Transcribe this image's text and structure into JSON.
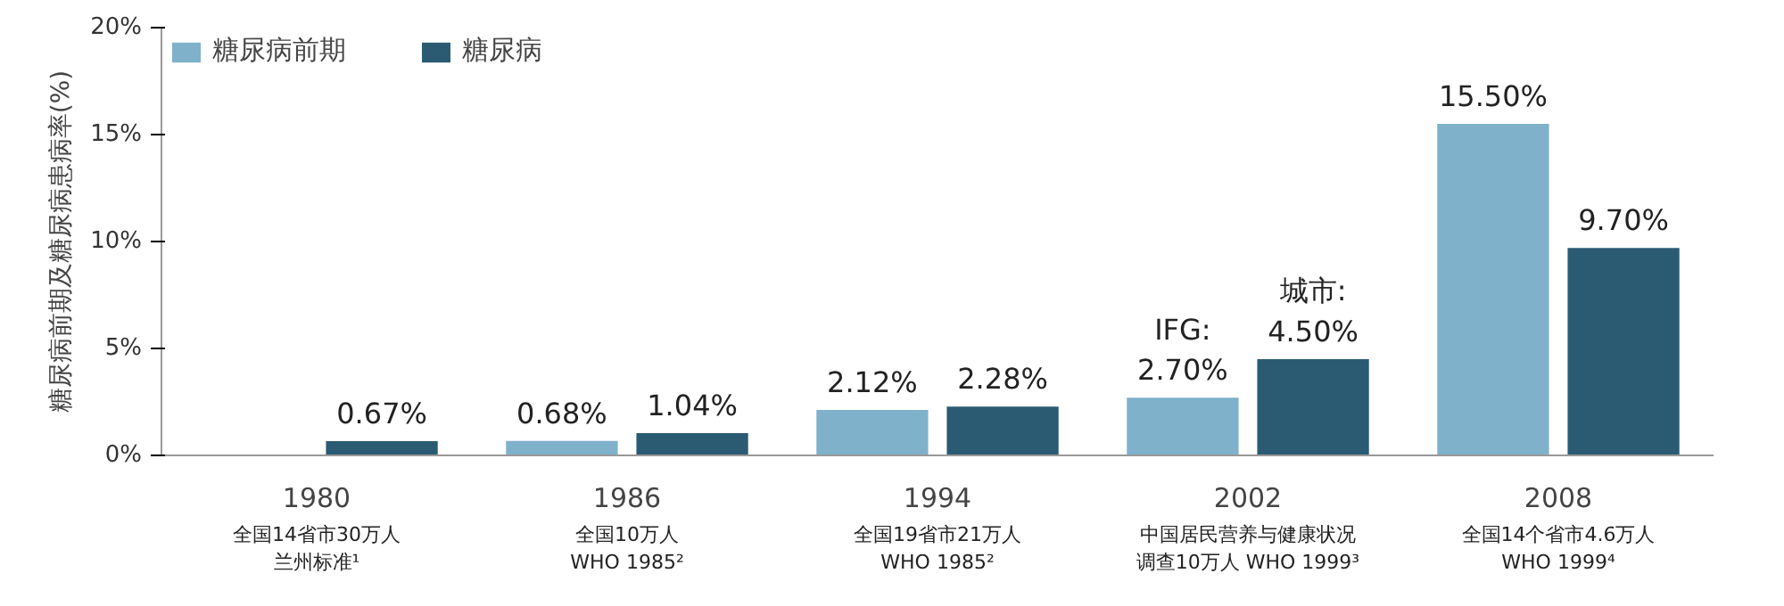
{
  "chart_data": {
    "type": "bar",
    "ylabel": "糖尿病前期及糖尿病患病率(%)",
    "categories": [
      "1980",
      "1986",
      "1994",
      "2002",
      "2008"
    ],
    "series": [
      {
        "name": "糖尿病前期",
        "color": "#7fb1cb",
        "values": [
          null,
          0.68,
          2.12,
          2.7,
          15.5
        ],
        "value_labels": [
          null,
          "0.68%",
          "2.12%",
          "IFG:\n2.70%",
          "15.50%"
        ]
      },
      {
        "name": "糖尿病",
        "color": "#2b5b73",
        "values": [
          0.67,
          1.04,
          2.28,
          4.5,
          9.7
        ],
        "value_labels": [
          "0.67%",
          "1.04%",
          "2.28%",
          "城市:\n4.50%",
          "9.70%"
        ]
      }
    ],
    "ylim": [
      0,
      20
    ],
    "yticks": [
      {
        "value": 0,
        "label": "0%"
      },
      {
        "value": 5,
        "label": "5%"
      },
      {
        "value": 10,
        "label": "10%"
      },
      {
        "value": 15,
        "label": "15%"
      },
      {
        "value": 20,
        "label": "20%"
      }
    ],
    "legend": "top left",
    "grid": false,
    "annotations": [
      "全国14省市30万人",
      "全国10万人",
      "全国19省市21万人",
      "中国居民营养与健康状况",
      "全国14个省市4.6万人",
      "兰州标准¹",
      "WHO 1985²",
      "WHO 1985²",
      "调查10万人 WHO 1999³",
      "WHO 1999⁴"
    ]
  }
}
